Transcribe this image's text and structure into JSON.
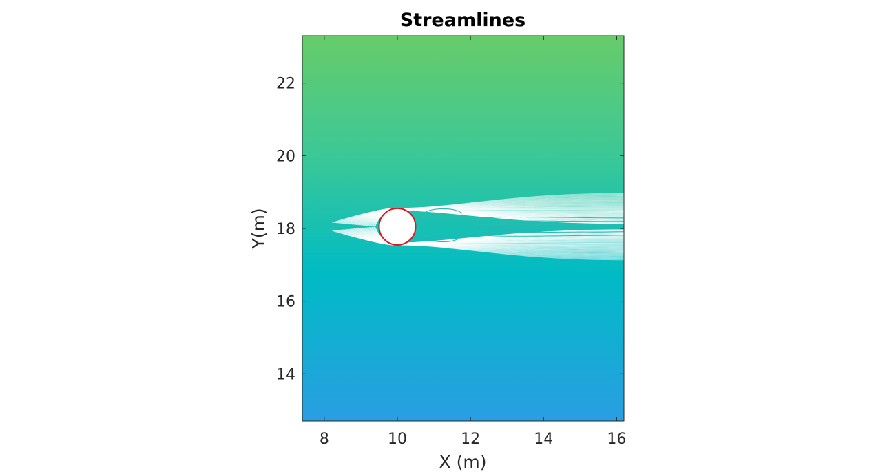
{
  "chart_data": {
    "type": "contour",
    "title": "Streamlines",
    "xlabel": "X (m)",
    "ylabel": "Y(m)",
    "xlim": [
      7.4,
      16.2
    ],
    "ylim": [
      12.7,
      23.3
    ],
    "xticks": [
      8,
      10,
      12,
      14,
      16
    ],
    "yticks": [
      14,
      16,
      18,
      20,
      22
    ],
    "grid": false,
    "colors": {
      "top": "#66cc6a",
      "middle": "#00bbc5",
      "bottom": "#2a9ee2",
      "streamline": "#ffffff",
      "recirculation": "#2cb9b4",
      "cylinder_edge": "#e0141e"
    },
    "cylinder": {
      "center": [
        10.0,
        18.05
      ],
      "radius": 0.5
    },
    "wake": {
      "x_start": 10.3,
      "x_end": 16.2,
      "half_width_at_end": 0.85
    },
    "recirculation_eddies": [
      {
        "center": [
          11.25,
          18.4
        ],
        "rx": 0.5,
        "ry": 0.14
      },
      {
        "center": [
          11.25,
          17.75
        ],
        "rx": 0.42,
        "ry": 0.12
      }
    ]
  }
}
